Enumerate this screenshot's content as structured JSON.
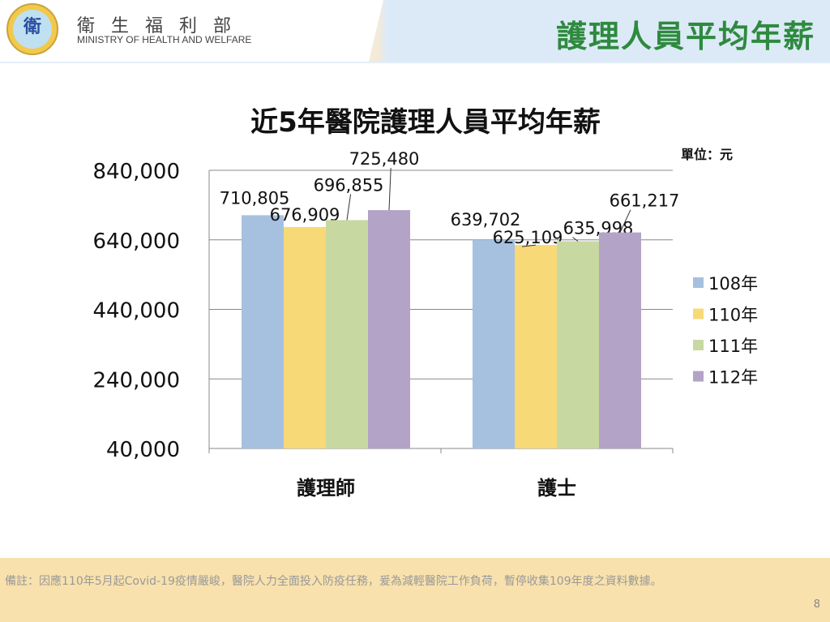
{
  "header": {
    "org_name_zh": "衛生福利部",
    "org_name_en": "MINISTRY OF HEALTH AND WELFARE",
    "logo_text": "衛",
    "slide_title": "護理人員平均年薪"
  },
  "chart_data": {
    "type": "bar",
    "title": "近5年醫院護理人員平均年薪",
    "unit_label": "單位：元",
    "categories": [
      "護理師",
      "護士"
    ],
    "series": [
      {
        "name": "108年",
        "color": "#a6c0e0",
        "values": [
          710805,
          639702
        ]
      },
      {
        "name": "110年",
        "color": "#f7d977",
        "values": [
          676909,
          625109
        ]
      },
      {
        "name": "111年",
        "color": "#c7d9a0",
        "values": [
          696855,
          635998
        ]
      },
      {
        "name": "112年",
        "color": "#b3a3c7",
        "values": [
          725480,
          661217
        ]
      }
    ],
    "data_labels": [
      [
        "710,805",
        "639,702"
      ],
      [
        "676,909",
        "625,109"
      ],
      [
        "696,855",
        "635,998"
      ],
      [
        "725,480",
        "661,217"
      ]
    ],
    "yticks": [
      "840,000",
      "640,000",
      "440,000",
      "240,000",
      "40,000"
    ],
    "ytick_values": [
      840000,
      640000,
      440000,
      240000,
      40000
    ],
    "ylim": [
      40000,
      840000
    ],
    "grid": true,
    "legend_position": "right"
  },
  "footer": {
    "note": "備註：因應110年5月起Covid-19疫情嚴峻，醫院人力全面投入防疫任務，爰為減輕醫院工作負荷，暫停收集109年度之資料數據。",
    "page_number": "8"
  }
}
